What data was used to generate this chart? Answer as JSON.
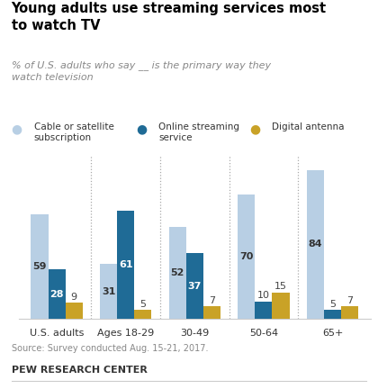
{
  "title": "Young adults use streaming services most\nto watch TV",
  "subtitle": "% of U.S. adults who say __ is the primary way they\nwatch television",
  "categories": [
    "U.S. adults",
    "Ages 18-29",
    "30-49",
    "50-64",
    "65+"
  ],
  "cable": [
    59,
    31,
    52,
    70,
    84
  ],
  "streaming": [
    28,
    61,
    37,
    10,
    5
  ],
  "antenna": [
    9,
    5,
    7,
    15,
    7
  ],
  "cable_color": "#b8cfe4",
  "streaming_color": "#1f6b96",
  "antenna_color": "#c9a227",
  "source": "Source: Survey conducted Aug. 15-21, 2017.",
  "footer": "PEW RESEARCH CENTER",
  "legend_labels": [
    "Cable or satellite\nsubscription",
    "Online streaming\nservice",
    "Digital antenna"
  ],
  "bar_width": 0.25,
  "ylim": [
    0,
    92
  ]
}
